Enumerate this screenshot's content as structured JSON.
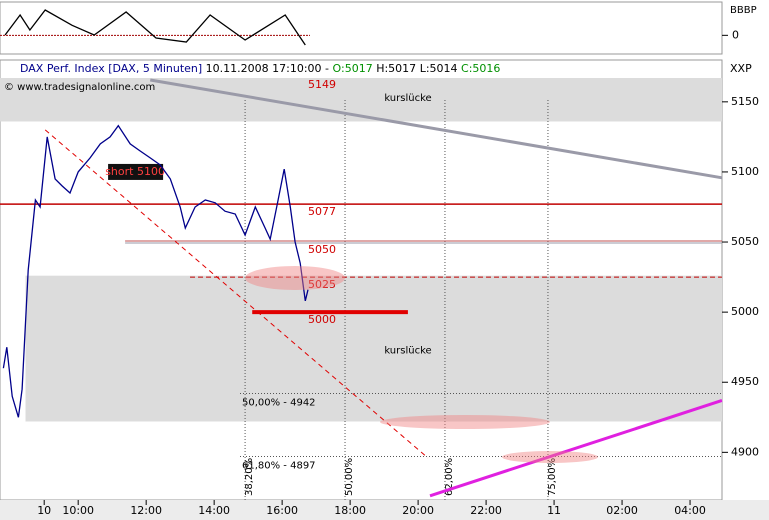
{
  "chart_data": [
    {
      "type": "line",
      "title": "DAX Perf. Index [DAX, 5 Minuten]",
      "timestamp": "10.11.2008 17:10:00",
      "ohlc": [
        "O:5017",
        "H:5017",
        "L:5014",
        "C:5016"
      ],
      "watermark": "© www.tradesignalonline.com",
      "y_label": "XXP",
      "color": "#00008b",
      "x": [
        7.8,
        7.9,
        8.06,
        8.24,
        8.35,
        8.53,
        8.74,
        8.88,
        9.09,
        9.32,
        9.53,
        9.76,
        10.0,
        10.35,
        10.65,
        10.94,
        11.18,
        11.53,
        11.82,
        12.12,
        12.41,
        12.71,
        13.0,
        13.15,
        13.44,
        13.74,
        14.03,
        14.32,
        14.62,
        14.91,
        15.21,
        15.5,
        15.65,
        15.88,
        16.06,
        16.24,
        16.38,
        16.53,
        16.68,
        16.76
      ],
      "values": [
        4960,
        4975,
        4940,
        4925,
        4945,
        5030,
        5080,
        5075,
        5125,
        5095,
        5090,
        5085,
        5100,
        5110,
        5120,
        5125,
        5133,
        5120,
        5115,
        5110,
        5105,
        5095,
        5075,
        5060,
        5075,
        5080,
        5078,
        5072,
        5070,
        5055,
        5075,
        5060,
        5052,
        5080,
        5102,
        5075,
        5050,
        5035,
        5008,
        5016
      ],
      "xlim": [
        7.7,
        28.94
      ],
      "ylim": [
        4866,
        5167
      ],
      "xticks": [
        {
          "value": 9,
          "label": "10"
        },
        {
          "value": 10,
          "label": "10:00"
        },
        {
          "value": 12,
          "label": "12:00"
        },
        {
          "value": 14,
          "label": "14:00"
        },
        {
          "value": 16,
          "label": "16:00"
        },
        {
          "value": 18,
          "label": "18:00"
        },
        {
          "value": 20,
          "label": "20:00"
        },
        {
          "value": 22,
          "label": "22:00"
        },
        {
          "value": 24,
          "label": "11"
        },
        {
          "value": 26,
          "label": "02:00"
        },
        {
          "value": 28,
          "label": "04:00"
        }
      ],
      "yticks": [
        4900,
        4950,
        5000,
        5050,
        5100,
        5150
      ],
      "gaps": [
        {
          "label": "kurslücke",
          "range": [
            5136,
            5167
          ],
          "from": 7.7
        },
        {
          "label": "kurslücke",
          "range": [
            4922,
            5026
          ],
          "from": 8.45
        }
      ],
      "levels": [
        {
          "value": 5149,
          "line": "none",
          "from": 7.7
        },
        {
          "value": 5077,
          "line": "solid",
          "from": 7.7
        },
        {
          "value": 5050,
          "line": "double",
          "from": 11.38
        },
        {
          "value": 5025,
          "line": "dashed",
          "from": 13.29
        },
        {
          "value": 5000,
          "line": "thick",
          "from": 15.12,
          "to": 19.7
        }
      ],
      "fib": [
        {
          "label": "50,00% - 4942",
          "value": 4942
        },
        {
          "label": "61,80% - 4897",
          "value": 4897
        }
      ],
      "time_zones": [
        {
          "label": "38,20%",
          "x": 14.91
        },
        {
          "label": "50,00%",
          "x": 17.85
        },
        {
          "label": "62,00%",
          "x": 20.79
        },
        {
          "label": "75,00%",
          "x": 23.82
        }
      ],
      "trendlines": [
        {
          "color": "#9a9aa8",
          "points": [
            [
              12.12,
              5165.6
            ],
            [
              28.94,
              5095.8
            ]
          ]
        },
        {
          "color": "#e00000",
          "dashed": true,
          "points": [
            [
              9.03,
              5130
            ],
            [
              20.29,
              4896
            ]
          ]
        },
        {
          "color": "#e020e0",
          "points": [
            [
              20.35,
              4869
            ],
            [
              28.94,
              4937
            ]
          ]
        }
      ],
      "note": {
        "label": "short 5100",
        "x": 10.88,
        "value": 5100
      }
    },
    {
      "type": "line",
      "y_label": "BBBP",
      "color": "#000000",
      "x": [
        7.85,
        8.29,
        8.58,
        9.03,
        9.82,
        10.47,
        11.41,
        12.29,
        13.18,
        13.88,
        14.91,
        16.09,
        16.68
      ],
      "values": [
        0.02,
        1.22,
        0.32,
        1.52,
        0.6,
        0.02,
        1.4,
        -0.16,
        -0.4,
        1.22,
        -0.28,
        1.22,
        -0.58
      ],
      "xlim": [
        7.7,
        28.94
      ],
      "ylim": [
        -1,
        2
      ],
      "yticks": [
        0
      ]
    }
  ]
}
